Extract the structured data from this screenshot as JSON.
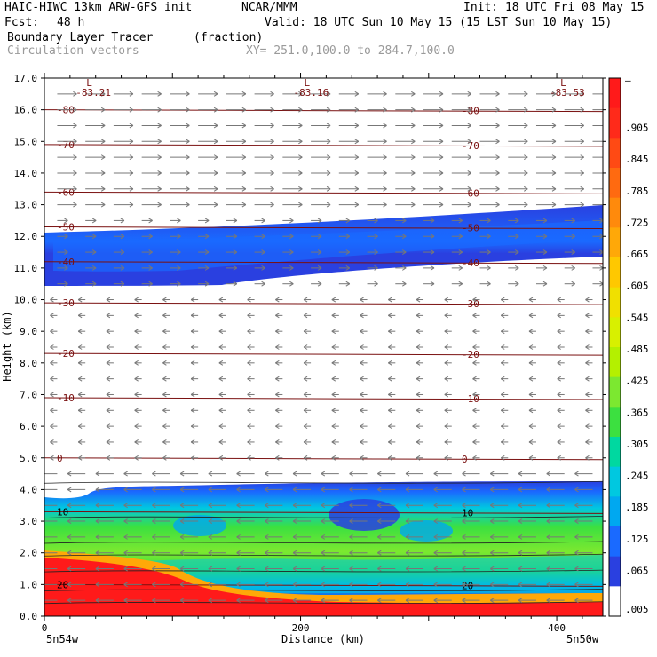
{
  "header": {
    "model": "HAIC-HIWC 13km ARW-GFS init",
    "org": "NCAR/MMM",
    "init": "Init: 18 UTC Fri 08 May 15",
    "fcst_label": "Fcst:",
    "fcst_value": "48 h",
    "valid": "Valid: 18 UTC Sun 10 May 15 (15 LST Sun 10 May 15)",
    "field": "Boundary Layer Tracer",
    "field_units": "(fraction)",
    "vectors": "Circulation vectors",
    "xy": "XY= 251.0,100.0 to 284.7,100.0"
  },
  "chart_data": {
    "type": "heatmap",
    "xlabel": "Distance (km)",
    "ylabel": "Height (km)",
    "xlim": [
      0,
      436
    ],
    "ylim": [
      0,
      17
    ],
    "x_ticks": [
      0,
      200,
      400
    ],
    "y_ticks": [
      "0.0",
      "1.0",
      "2.0",
      "3.0",
      "4.0",
      "5.0",
      "6.0",
      "7.0",
      "8.0",
      "9.0",
      "10.0",
      "11.0",
      "12.0",
      "13.0",
      "14.0",
      "15.0",
      "16.0",
      "17.0"
    ],
    "x_endpoints": [
      "5n54w",
      "5n50w"
    ],
    "colorbar": {
      "labels": [
        "–",
        ".905",
        ".845",
        ".785",
        ".725",
        ".665",
        ".605",
        ".545",
        ".485",
        ".425",
        ".365",
        ".305",
        ".245",
        ".185",
        ".125",
        ".065",
        ".005"
      ],
      "colors": [
        "#ff1a1a",
        "#ff2a1a",
        "#ff4a14",
        "#ff6a10",
        "#ff8a0c",
        "#ffa808",
        "#ffc800",
        "#f0e000",
        "#d8f000",
        "#b4f000",
        "#7ce830",
        "#3ce040",
        "#00d8a0",
        "#00c8e0",
        "#00a8f0",
        "#1a6aff",
        "#2a40e0",
        "#ffffff"
      ]
    },
    "temperature_isotherms": [
      {
        "value": "-80",
        "height": 16.0
      },
      {
        "value": "-70",
        "height": 14.9
      },
      {
        "value": "-60",
        "height": 13.4
      },
      {
        "value": "-50",
        "height": 12.3
      },
      {
        "value": "-40",
        "height": 11.2
      },
      {
        "value": "-30",
        "height": 9.9
      },
      {
        "value": "-20",
        "height": 8.3
      },
      {
        "value": "-10",
        "height": 6.9
      },
      {
        "value": "0",
        "height": 5.0
      },
      {
        "value": "10",
        "height": 3.3
      },
      {
        "value": "20",
        "height": 1.0
      }
    ],
    "tropopause_minima": [
      {
        "label": "L",
        "value": "-83.21",
        "x": 30
      },
      {
        "label": "L",
        "value": "-83.16",
        "x": 200
      },
      {
        "label": "L",
        "value": "-83.53",
        "x": 400
      }
    ]
  }
}
